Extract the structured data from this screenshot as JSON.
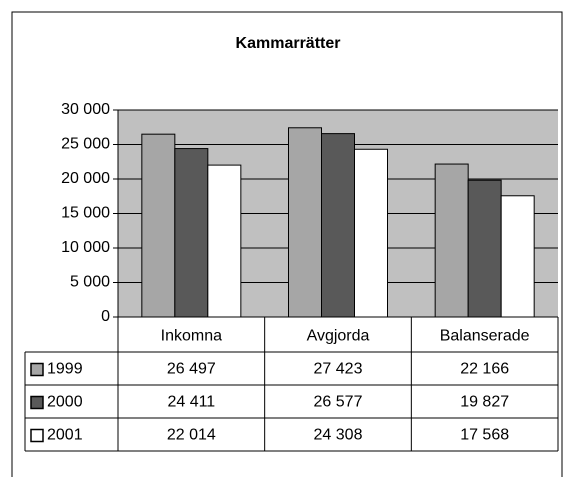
{
  "chart_data": {
    "type": "bar",
    "title": "Kammarrätter",
    "categories": [
      "Inkomna",
      "Avgjorda",
      "Balanserade"
    ],
    "series": [
      {
        "name": "1999",
        "color": "#a6a6a6",
        "values": [
          26497,
          27423,
          22166
        ],
        "value_labels": [
          "26 497",
          "27 423",
          "22 166"
        ]
      },
      {
        "name": "2000",
        "color": "#595959",
        "values": [
          24411,
          26577,
          19827
        ],
        "value_labels": [
          "24 411",
          "26 577",
          "19 827"
        ]
      },
      {
        "name": "2001",
        "color": "#ffffff",
        "values": [
          22014,
          24308,
          17568
        ],
        "value_labels": [
          "22 014",
          "24 308",
          "17 568"
        ]
      }
    ],
    "ylim": [
      0,
      30000
    ],
    "yticks": [
      0,
      {
        "value": 5000,
        "label": "5 000"
      },
      {
        "value": 10000,
        "label": "10 000"
      },
      {
        "value": 15000,
        "label": "15 000"
      },
      {
        "value": 20000,
        "label": "20 000"
      },
      {
        "value": 25000,
        "label": "25 000"
      },
      {
        "value": 30000,
        "label": "30 000"
      }
    ],
    "grid": true,
    "plot_background": "#c0c0c0"
  }
}
